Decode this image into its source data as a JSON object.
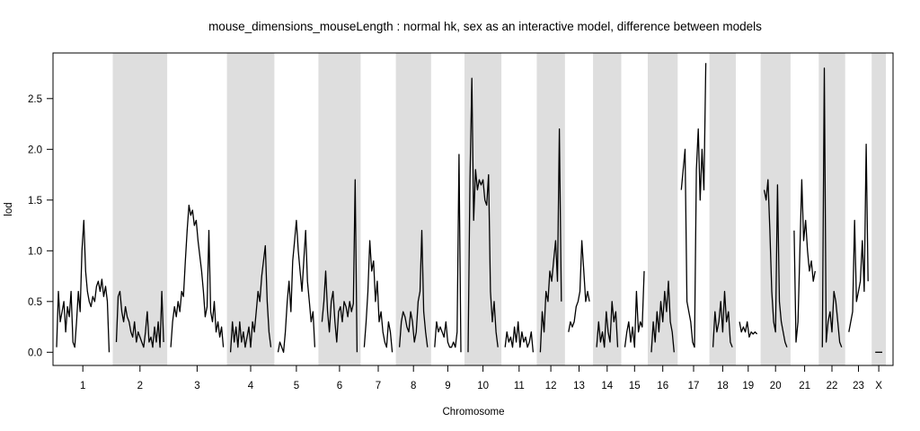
{
  "chart_data": {
    "type": "line",
    "title": "mouse_dimensions_mouseLength : normal hk, sex as an interactive model, difference between models",
    "xlabel": "Chromosome",
    "ylabel": "lod",
    "ylim": [
      -0.13,
      2.95
    ],
    "yticks": [
      "0.0",
      "0.5",
      "1.0",
      "1.5",
      "2.0",
      "2.5"
    ],
    "chromosomes": [
      {
        "label": "1",
        "shaded": false,
        "profile": [
          0.05,
          0.6,
          0.3,
          0.4,
          0.5,
          0.2,
          0.45,
          0.35,
          0.6,
          0.1,
          0.05,
          0.3,
          0.6,
          0.4,
          1.0,
          1.3,
          0.8,
          0.6,
          0.5,
          0.45,
          0.55,
          0.5,
          0.65,
          0.7,
          0.6,
          0.72,
          0.55,
          0.65,
          0.5,
          0.0
        ]
      },
      {
        "label": "2",
        "shaded": true,
        "profile": [
          0.1,
          0.55,
          0.6,
          0.4,
          0.3,
          0.45,
          0.35,
          0.3,
          0.2,
          0.15,
          0.3,
          0.1,
          0.2,
          0.15,
          0.1,
          0.05,
          0.2,
          0.4,
          0.1,
          0.15,
          0.05,
          0.25,
          0.1,
          0.3,
          0.05,
          0.6,
          0.1
        ]
      },
      {
        "label": "3",
        "shaded": false,
        "profile": [
          0.05,
          0.3,
          0.45,
          0.35,
          0.5,
          0.4,
          0.6,
          0.55,
          0.9,
          1.2,
          1.45,
          1.35,
          1.4,
          1.25,
          1.3,
          1.1,
          0.95,
          0.8,
          0.6,
          0.35,
          0.45,
          1.2,
          0.4,
          0.3,
          0.5,
          0.2,
          0.3,
          0.15,
          0.25,
          0.05
        ]
      },
      {
        "label": "4",
        "shaded": true,
        "profile": [
          0.0,
          0.3,
          0.1,
          0.25,
          0.05,
          0.3,
          0.1,
          0.2,
          0.05,
          0.15,
          0.25,
          0.05,
          0.3,
          0.2,
          0.4,
          0.6,
          0.5,
          0.75,
          0.9,
          1.05,
          0.5,
          0.2,
          0.05
        ]
      },
      {
        "label": "5",
        "shaded": false,
        "profile": [
          0.0,
          0.1,
          0.05,
          0.0,
          0.2,
          0.5,
          0.7,
          0.4,
          0.9,
          1.1,
          1.3,
          1.0,
          0.8,
          0.6,
          0.9,
          1.2,
          0.7,
          0.5,
          0.3,
          0.4,
          0.05
        ]
      },
      {
        "label": "6",
        "shaded": true,
        "profile": [
          0.3,
          0.5,
          0.8,
          0.4,
          0.2,
          0.5,
          0.6,
          0.3,
          0.1,
          0.4,
          0.45,
          0.3,
          0.5,
          0.45,
          0.35,
          0.5,
          0.4,
          0.48,
          1.7,
          0.0
        ]
      },
      {
        "label": "7",
        "shaded": false,
        "profile": [
          0.05,
          0.3,
          0.6,
          1.1,
          0.8,
          0.9,
          0.5,
          0.7,
          0.3,
          0.4,
          0.2,
          0.1,
          0.05,
          0.3,
          0.2,
          0.0
        ]
      },
      {
        "label": "8",
        "shaded": true,
        "profile": [
          0.05,
          0.3,
          0.4,
          0.35,
          0.25,
          0.2,
          0.4,
          0.3,
          0.1,
          0.2,
          0.5,
          0.6,
          1.2,
          0.4,
          0.2,
          0.05
        ]
      },
      {
        "label": "9",
        "shaded": false,
        "profile": [
          0.05,
          0.3,
          0.2,
          0.25,
          0.2,
          0.15,
          0.3,
          0.1,
          0.05,
          0.05,
          0.1,
          0.05,
          0.2,
          1.95,
          0.0
        ]
      },
      {
        "label": "10",
        "shaded": true,
        "profile": [
          0.0,
          1.7,
          2.7,
          1.3,
          1.8,
          1.6,
          1.7,
          1.65,
          1.7,
          1.5,
          1.45,
          1.75,
          0.6,
          0.3,
          0.5,
          0.2,
          0.05
        ]
      },
      {
        "label": "11",
        "shaded": false,
        "profile": [
          0.05,
          0.2,
          0.1,
          0.15,
          0.05,
          0.25,
          0.1,
          0.3,
          0.05,
          0.2,
          0.1,
          0.15,
          0.05,
          0.1,
          0.2,
          0.0
        ]
      },
      {
        "label": "12",
        "shaded": true,
        "profile": [
          0.0,
          0.4,
          0.2,
          0.6,
          0.5,
          0.8,
          0.7,
          0.9,
          1.1,
          0.7,
          2.2,
          0.5
        ]
      },
      {
        "label": "13",
        "shaded": false,
        "profile": [
          0.2,
          0.3,
          0.25,
          0.3,
          0.45,
          0.5,
          0.6,
          1.1,
          0.8,
          0.5,
          0.6,
          0.5
        ]
      },
      {
        "label": "14",
        "shaded": true,
        "profile": [
          0.05,
          0.3,
          0.1,
          0.2,
          0.05,
          0.4,
          0.2,
          0.1,
          0.5,
          0.3,
          0.4,
          0.05
        ]
      },
      {
        "label": "15",
        "shaded": false,
        "profile": [
          0.05,
          0.2,
          0.3,
          0.1,
          0.25,
          0.05,
          0.6,
          0.2,
          0.3,
          0.25,
          0.8
        ]
      },
      {
        "label": "16",
        "shaded": true,
        "profile": [
          0.0,
          0.3,
          0.1,
          0.4,
          0.2,
          0.5,
          0.3,
          0.6,
          0.4,
          0.7,
          0.3,
          0.2,
          0.0
        ]
      },
      {
        "label": "17",
        "shaded": false,
        "profile": [
          1.6,
          1.8,
          2.0,
          0.5,
          0.4,
          0.3,
          0.1,
          0.05,
          1.8,
          2.2,
          1.5,
          2.0,
          1.6,
          2.85
        ]
      },
      {
        "label": "18",
        "shaded": true,
        "profile": [
          0.05,
          0.4,
          0.2,
          0.3,
          0.5,
          0.2,
          0.6,
          0.3,
          0.4,
          0.1,
          0.05
        ]
      },
      {
        "label": "19",
        "shaded": false,
        "profile": [
          0.3,
          0.2,
          0.25,
          0.2,
          0.3,
          0.15,
          0.2,
          0.18,
          0.2,
          0.18
        ]
      },
      {
        "label": "20",
        "shaded": true,
        "profile": [
          1.6,
          1.5,
          1.7,
          1.2,
          0.6,
          0.3,
          0.2,
          1.65,
          0.5,
          0.3,
          0.2,
          0.1,
          0.05
        ]
      },
      {
        "label": "21",
        "shaded": false,
        "profile": [
          1.2,
          0.1,
          0.3,
          1.0,
          1.7,
          1.1,
          1.3,
          1.0,
          0.8,
          0.9,
          0.7,
          0.8
        ]
      },
      {
        "label": "22",
        "shaded": true,
        "profile": [
          0.05,
          2.8,
          0.1,
          0.3,
          0.4,
          0.2,
          0.6,
          0.5,
          0.3,
          0.1,
          0.05
        ]
      },
      {
        "label": "23",
        "shaded": false,
        "profile": [
          0.2,
          0.3,
          0.4,
          1.3,
          0.5,
          0.6,
          0.7,
          1.1,
          0.6,
          2.05,
          0.7
        ]
      },
      {
        "label": "X",
        "shaded": true,
        "profile": [
          0.0,
          0.0,
          0.0,
          0.0
        ]
      }
    ]
  }
}
